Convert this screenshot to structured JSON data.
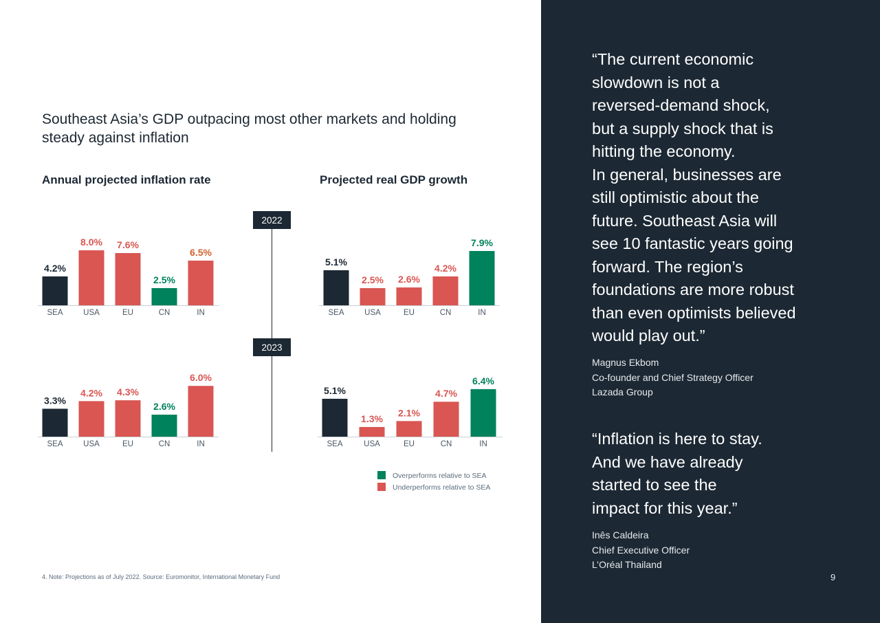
{
  "title": "Southeast Asia’s GDP outpacing most other markets and holding\nsteady against inflation",
  "inflation_title": "Annual projected inflation rate",
  "gdp_title": "Projected real GDP growth",
  "footnote": "4. Note: Projections as of July 2022. Source: Euromonitor, International Monetary Fund",
  "colors": {
    "baseline": "#1c2833",
    "underperforms": "#d95652",
    "overperforms": "#00825c",
    "underperforms_label_inflation_highest": "#d0622e"
  },
  "legend": [
    {
      "label": "Overperforms relative to SEA",
      "color": "#00825c"
    },
    {
      "label": "Underperforms relative to SEA",
      "color": "#d95652"
    }
  ],
  "chart_data": [
    {
      "type": "bar",
      "title": "Annual projected inflation rate",
      "year": "2022",
      "categories": [
        "SEA",
        "USA",
        "EU",
        "CN",
        "IN"
      ],
      "values": [
        4.2,
        8.0,
        7.6,
        2.5,
        6.5
      ],
      "value_labels": [
        "4.2%",
        "8.0%",
        "7.6%",
        "2.5%",
        "6.5%"
      ],
      "bar_colors": [
        "#1c2833",
        "#d95652",
        "#d95652",
        "#00825c",
        "#d95652"
      ],
      "label_colors": [
        "#1c2833",
        "#d95652",
        "#d95652",
        "#00825c",
        "#d0622e"
      ]
    },
    {
      "type": "bar",
      "title": "Annual projected inflation rate",
      "year": "2023",
      "categories": [
        "SEA",
        "USA",
        "EU",
        "CN",
        "IN"
      ],
      "values": [
        3.3,
        4.2,
        4.3,
        2.6,
        6.0
      ],
      "value_labels": [
        "3.3%",
        "4.2%",
        "4.3%",
        "2.6%",
        "6.0%"
      ],
      "bar_colors": [
        "#1c2833",
        "#d95652",
        "#d95652",
        "#00825c",
        "#d95652"
      ],
      "label_colors": [
        "#1c2833",
        "#d95652",
        "#d95652",
        "#00825c",
        "#d95652"
      ]
    },
    {
      "type": "bar",
      "title": "Projected real GDP growth",
      "year": "2022",
      "categories": [
        "SEA",
        "USA",
        "EU",
        "CN",
        "IN"
      ],
      "values": [
        5.1,
        2.5,
        2.6,
        4.2,
        7.9
      ],
      "value_labels": [
        "5.1%",
        "2.5%",
        "2.6%",
        "4.2%",
        "7.9%"
      ],
      "bar_colors": [
        "#1c2833",
        "#d95652",
        "#d95652",
        "#d95652",
        "#00825c"
      ],
      "label_colors": [
        "#1c2833",
        "#d95652",
        "#d95652",
        "#d95652",
        "#00825c"
      ]
    },
    {
      "type": "bar",
      "title": "Projected real GDP growth",
      "year": "2023",
      "categories": [
        "SEA",
        "USA",
        "EU",
        "CN",
        "IN"
      ],
      "values": [
        5.1,
        1.3,
        2.1,
        4.7,
        6.4
      ],
      "value_labels": [
        "5.1%",
        "1.3%",
        "2.1%",
        "4.7%",
        "6.4%"
      ],
      "bar_colors": [
        "#1c2833",
        "#d95652",
        "#d95652",
        "#d95652",
        "#00825c"
      ],
      "label_colors": [
        "#1c2833",
        "#d95652",
        "#d95652",
        "#d95652",
        "#00825c"
      ]
    }
  ],
  "years": [
    "2022",
    "2023"
  ],
  "quotes": [
    {
      "text": "“The current economic\nslowdown is not a\nreversed-demand shock,\nbut a supply shock that is\nhitting the economy.\nIn general, businesses are\nstill optimistic about the\nfuture. Southeast Asia will\nsee 10 fantastic years going\nforward. The region’s\nfoundations are more robust\nthan even optimists believed\nwould play out.”",
      "name": "Magnus Ekbom",
      "role": "Co-founder and Chief Strategy Officer",
      "company": "Lazada Group"
    },
    {
      "text": "“Inflation is here to stay.\nAnd we have already\nstarted to see the\nimpact for this year.”",
      "name": "Inês Caldeira",
      "role": "Chief Executive Officer",
      "company": "L’Oréal Thailand"
    }
  ],
  "page_number": "9"
}
